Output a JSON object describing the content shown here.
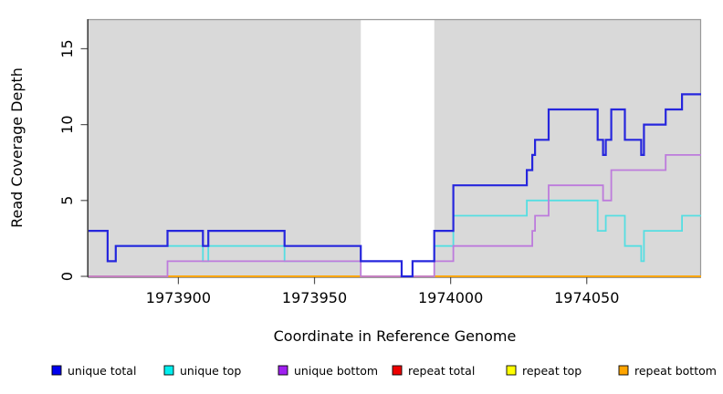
{
  "chart_data": {
    "type": "line",
    "subtype": "step-after-coverage",
    "title": "",
    "xlabel": "Coordinate in Reference Genome",
    "ylabel": "Read Coverage Depth",
    "x_range": [
      1973867,
      1974092
    ],
    "y_range": [
      0,
      16.95
    ],
    "x_ticks": [
      1973900,
      1973950,
      1974000,
      1974050
    ],
    "y_ticks": [
      0,
      5,
      10,
      15
    ],
    "grid": false,
    "colors": {
      "figure_background": "#ffffff",
      "plot_background": "#d9d9d9",
      "gap_region": "#ffffff",
      "axis_line": "#333333",
      "box_line": "#999999",
      "tick_mark": "#555555",
      "text": "#000000"
    },
    "coverage_gap_region": [
      1973967,
      1973994
    ],
    "step_mode": "after",
    "series": [
      {
        "name": "repeat total",
        "line_color": "#dd0000",
        "swatch_color": "#ee0000",
        "points": [
          [
            1973867,
            0
          ]
        ]
      },
      {
        "name": "repeat top",
        "line_color": "#eeee00",
        "swatch_color": "#ffff00",
        "points": [
          [
            1973867,
            0
          ]
        ]
      },
      {
        "name": "repeat bottom",
        "line_color": "#ffa500",
        "swatch_color": "#ffa500",
        "points": [
          [
            1973867,
            0
          ]
        ]
      },
      {
        "name": "unique top",
        "line_color": "#55dee2",
        "swatch_color": "#00eeee",
        "points": [
          [
            1973867,
            3
          ],
          [
            1973874,
            1
          ],
          [
            1973877,
            2
          ],
          [
            1973909,
            1
          ],
          [
            1973911,
            2
          ],
          [
            1973939,
            1
          ],
          [
            1973982,
            0
          ],
          [
            1973986,
            1
          ],
          [
            1973994,
            2
          ],
          [
            1974001,
            4
          ],
          [
            1974028,
            5
          ],
          [
            1974054,
            3
          ],
          [
            1974057,
            4
          ],
          [
            1974064,
            2
          ],
          [
            1974070,
            1
          ],
          [
            1974071,
            3
          ],
          [
            1974085,
            4
          ]
        ]
      },
      {
        "name": "unique bottom",
        "line_color": "#bd7bdc",
        "swatch_color": "#a020f0",
        "points": [
          [
            1973867,
            0
          ],
          [
            1973896,
            1
          ],
          [
            1973967,
            0
          ],
          [
            1973994,
            1
          ],
          [
            1974001,
            2
          ],
          [
            1974030,
            3
          ],
          [
            1974031,
            4
          ],
          [
            1974036,
            6
          ],
          [
            1974056,
            5
          ],
          [
            1974059,
            7
          ],
          [
            1974079,
            8
          ]
        ]
      },
      {
        "name": "unique total",
        "line_color": "#2626dd",
        "swatch_color": "#0000ee",
        "points": [
          [
            1973867,
            3
          ],
          [
            1973874,
            1
          ],
          [
            1973877,
            2
          ],
          [
            1973896,
            3
          ],
          [
            1973909,
            2
          ],
          [
            1973911,
            3
          ],
          [
            1973939,
            2
          ],
          [
            1973967,
            1
          ],
          [
            1973982,
            0
          ],
          [
            1973986,
            1
          ],
          [
            1973994,
            3
          ],
          [
            1974001,
            6
          ],
          [
            1974028,
            7
          ],
          [
            1974030,
            8
          ],
          [
            1974031,
            9
          ],
          [
            1974036,
            11
          ],
          [
            1974054,
            9
          ],
          [
            1974056,
            8
          ],
          [
            1974057,
            9
          ],
          [
            1974059,
            11
          ],
          [
            1974064,
            9
          ],
          [
            1974070,
            8
          ],
          [
            1974071,
            10
          ],
          [
            1974079,
            11
          ],
          [
            1974085,
            12
          ]
        ]
      }
    ],
    "draw_order": [
      "repeat total",
      "repeat top",
      "repeat bottom",
      "unique top",
      "unique bottom",
      "unique total"
    ],
    "legend_order": [
      "unique total",
      "unique top",
      "unique bottom",
      "repeat total",
      "repeat top",
      "repeat bottom"
    ],
    "legend_position": "bottom"
  }
}
